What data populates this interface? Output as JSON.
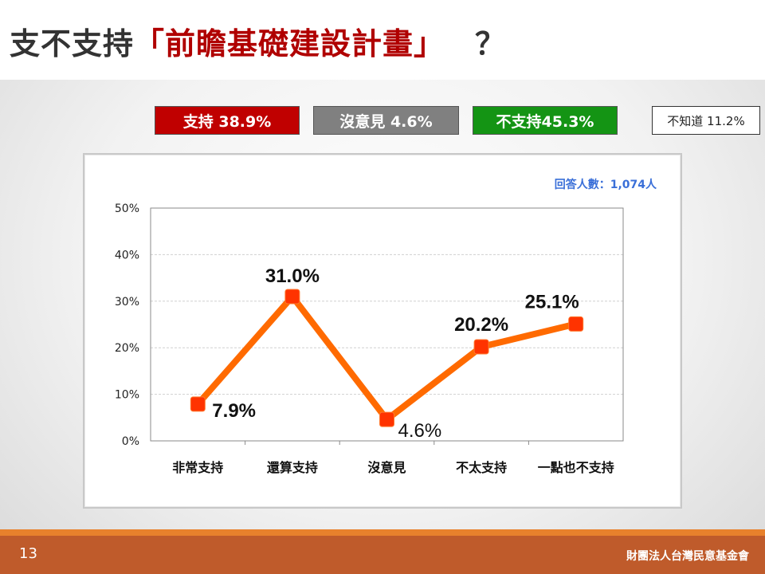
{
  "title": {
    "prefix": "支不支持",
    "highlight": "「前瞻基礎建設計畫」",
    "suffix": "？"
  },
  "summary": {
    "support": "支持 38.9%",
    "neutral": "沒意見 4.6%",
    "oppose": "不支持45.3%",
    "unknown": "不知道 11.2%"
  },
  "respondents": "回答人數：1,074人",
  "chart_data": {
    "type": "line",
    "categories": [
      "非常支持",
      "還算支持",
      "沒意見",
      "不太支持",
      "一點也不支持"
    ],
    "values": [
      7.9,
      31.0,
      4.6,
      20.2,
      25.1
    ],
    "value_labels": [
      "7.9%",
      "31.0%",
      "4.6%",
      "20.2%",
      "25.1%"
    ],
    "y_ticks": [
      "0%",
      "10%",
      "20%",
      "30%",
      "40%",
      "50%"
    ],
    "ylim": [
      0,
      50
    ],
    "grid": true,
    "line_color": "#ff6a00",
    "marker_color": "#ff3300"
  },
  "footer": {
    "page_number": "13",
    "organization": "財團法人台灣民意基金會"
  },
  "colors": {
    "support": "#c00000",
    "neutral": "#808080",
    "oppose": "#149414",
    "title_highlight": "#b00000",
    "footer": "#bf5b2b"
  }
}
